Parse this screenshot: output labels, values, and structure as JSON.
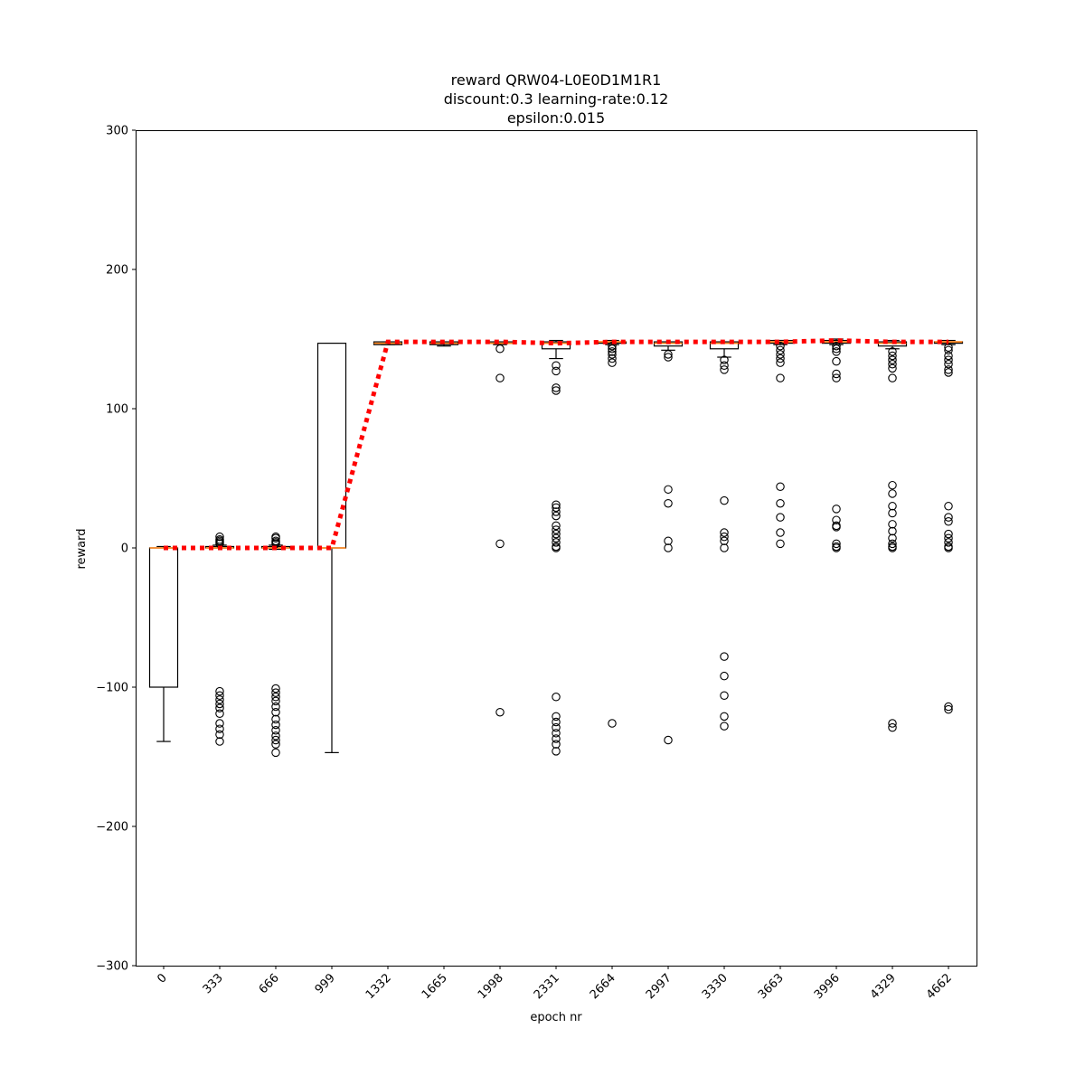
{
  "chart_data": {
    "type": "box",
    "title": "reward QRW04-L0E0D1M1R1",
    "subtitle_lines": [
      "discount:0.3 learning-rate:0.12",
      "epsilon:0.015"
    ],
    "xlabel": "epoch nr",
    "ylabel": "reward",
    "ylim": [
      -300,
      300
    ],
    "yticks": [
      -300,
      -200,
      -100,
      0,
      100,
      200,
      300
    ],
    "ytick_labels": [
      "−300",
      "−200",
      "−100",
      "0",
      "100",
      "200",
      "300"
    ],
    "categories": [
      "0",
      "333",
      "666",
      "999",
      "1332",
      "1665",
      "1998",
      "2331",
      "2664",
      "2997",
      "3330",
      "3663",
      "3996",
      "4329",
      "4662"
    ],
    "boxes": [
      {
        "q1": -100,
        "median": 0,
        "q3": 0,
        "whisker_low": -139,
        "whisker_high": 1,
        "outliers": []
      },
      {
        "q1": 0,
        "median": 0,
        "q3": 1,
        "whisker_low": 0,
        "whisker_high": 2,
        "outliers": [
          8,
          6,
          5,
          4,
          3,
          -103,
          -106,
          -109,
          -112,
          -115,
          -119,
          -126,
          -130,
          -134,
          -139
        ]
      },
      {
        "q1": 0,
        "median": 0,
        "q3": 1,
        "whisker_low": -1,
        "whisker_high": 2,
        "outliers": [
          8,
          7,
          5,
          4,
          3,
          -101,
          -104,
          -107,
          -110,
          -114,
          -118,
          -123,
          -127,
          -131,
          -135,
          -138,
          -141,
          -147
        ]
      },
      {
        "q1": 0,
        "median": 0,
        "q3": 147,
        "whisker_low": -147,
        "whisker_high": 147,
        "outliers": []
      },
      {
        "q1": 146,
        "median": 147,
        "q3": 148,
        "whisker_low": 146,
        "whisker_high": 148,
        "outliers": []
      },
      {
        "q1": 146,
        "median": 147,
        "q3": 148,
        "whisker_low": 145,
        "whisker_high": 148,
        "outliers": []
      },
      {
        "q1": 147,
        "median": 147,
        "q3": 148,
        "whisker_low": 146,
        "whisker_high": 148,
        "outliers": [
          143,
          122,
          3,
          -118
        ]
      },
      {
        "q1": 143,
        "median": 147,
        "q3": 148,
        "whisker_low": 136,
        "whisker_high": 149,
        "outliers": [
          131,
          127,
          115,
          113,
          31,
          29,
          26,
          23,
          16,
          13,
          10,
          7,
          4,
          1,
          0,
          -107,
          -121,
          -125,
          -129,
          -133,
          -137,
          -141,
          -146
        ]
      },
      {
        "q1": 147,
        "median": 148,
        "q3": 148,
        "whisker_low": 146,
        "whisker_high": 149,
        "outliers": [
          145,
          143,
          141,
          139,
          136,
          133,
          -126
        ]
      },
      {
        "q1": 145,
        "median": 147,
        "q3": 148,
        "whisker_low": 142,
        "whisker_high": 148,
        "outliers": [
          139,
          137,
          42,
          32,
          5,
          0,
          -138
        ]
      },
      {
        "q1": 143,
        "median": 147,
        "q3": 148,
        "whisker_low": 137,
        "whisker_high": 148,
        "outliers": [
          135,
          131,
          128,
          34,
          11,
          8,
          5,
          0,
          -78,
          -92,
          -106,
          -121,
          -128
        ]
      },
      {
        "q1": 147,
        "median": 148,
        "q3": 149,
        "whisker_low": 146,
        "whisker_high": 149,
        "outliers": [
          145,
          142,
          139,
          136,
          133,
          122,
          44,
          32,
          22,
          11,
          3
        ]
      },
      {
        "q1": 147,
        "median": 148,
        "q3": 149,
        "whisker_low": 146,
        "whisker_high": 150,
        "outliers": [
          145,
          143,
          141,
          134,
          125,
          122,
          28,
          20,
          16,
          15,
          3,
          1,
          0
        ]
      },
      {
        "q1": 145,
        "median": 147,
        "q3": 148,
        "whisker_low": 143,
        "whisker_high": 149,
        "outliers": [
          141,
          138,
          135,
          132,
          129,
          122,
          45,
          39,
          30,
          25,
          17,
          12,
          7,
          3,
          1,
          0,
          -126,
          -129
        ]
      },
      {
        "q1": 147,
        "median": 148,
        "q3": 148,
        "whisker_low": 146,
        "whisker_high": 149,
        "outliers": [
          144,
          142,
          138,
          135,
          132,
          128,
          126,
          30,
          22,
          19,
          10,
          7,
          4,
          1,
          0,
          -114,
          -116
        ]
      }
    ],
    "mean_line": {
      "style": "dotted",
      "values": [
        0,
        0,
        0,
        0,
        148,
        148,
        148,
        147,
        148,
        148,
        148,
        148,
        149,
        148,
        148
      ]
    },
    "colors": {
      "median": "#ff7f0e",
      "mean_line": "#ff0000",
      "box": "#000000"
    }
  }
}
